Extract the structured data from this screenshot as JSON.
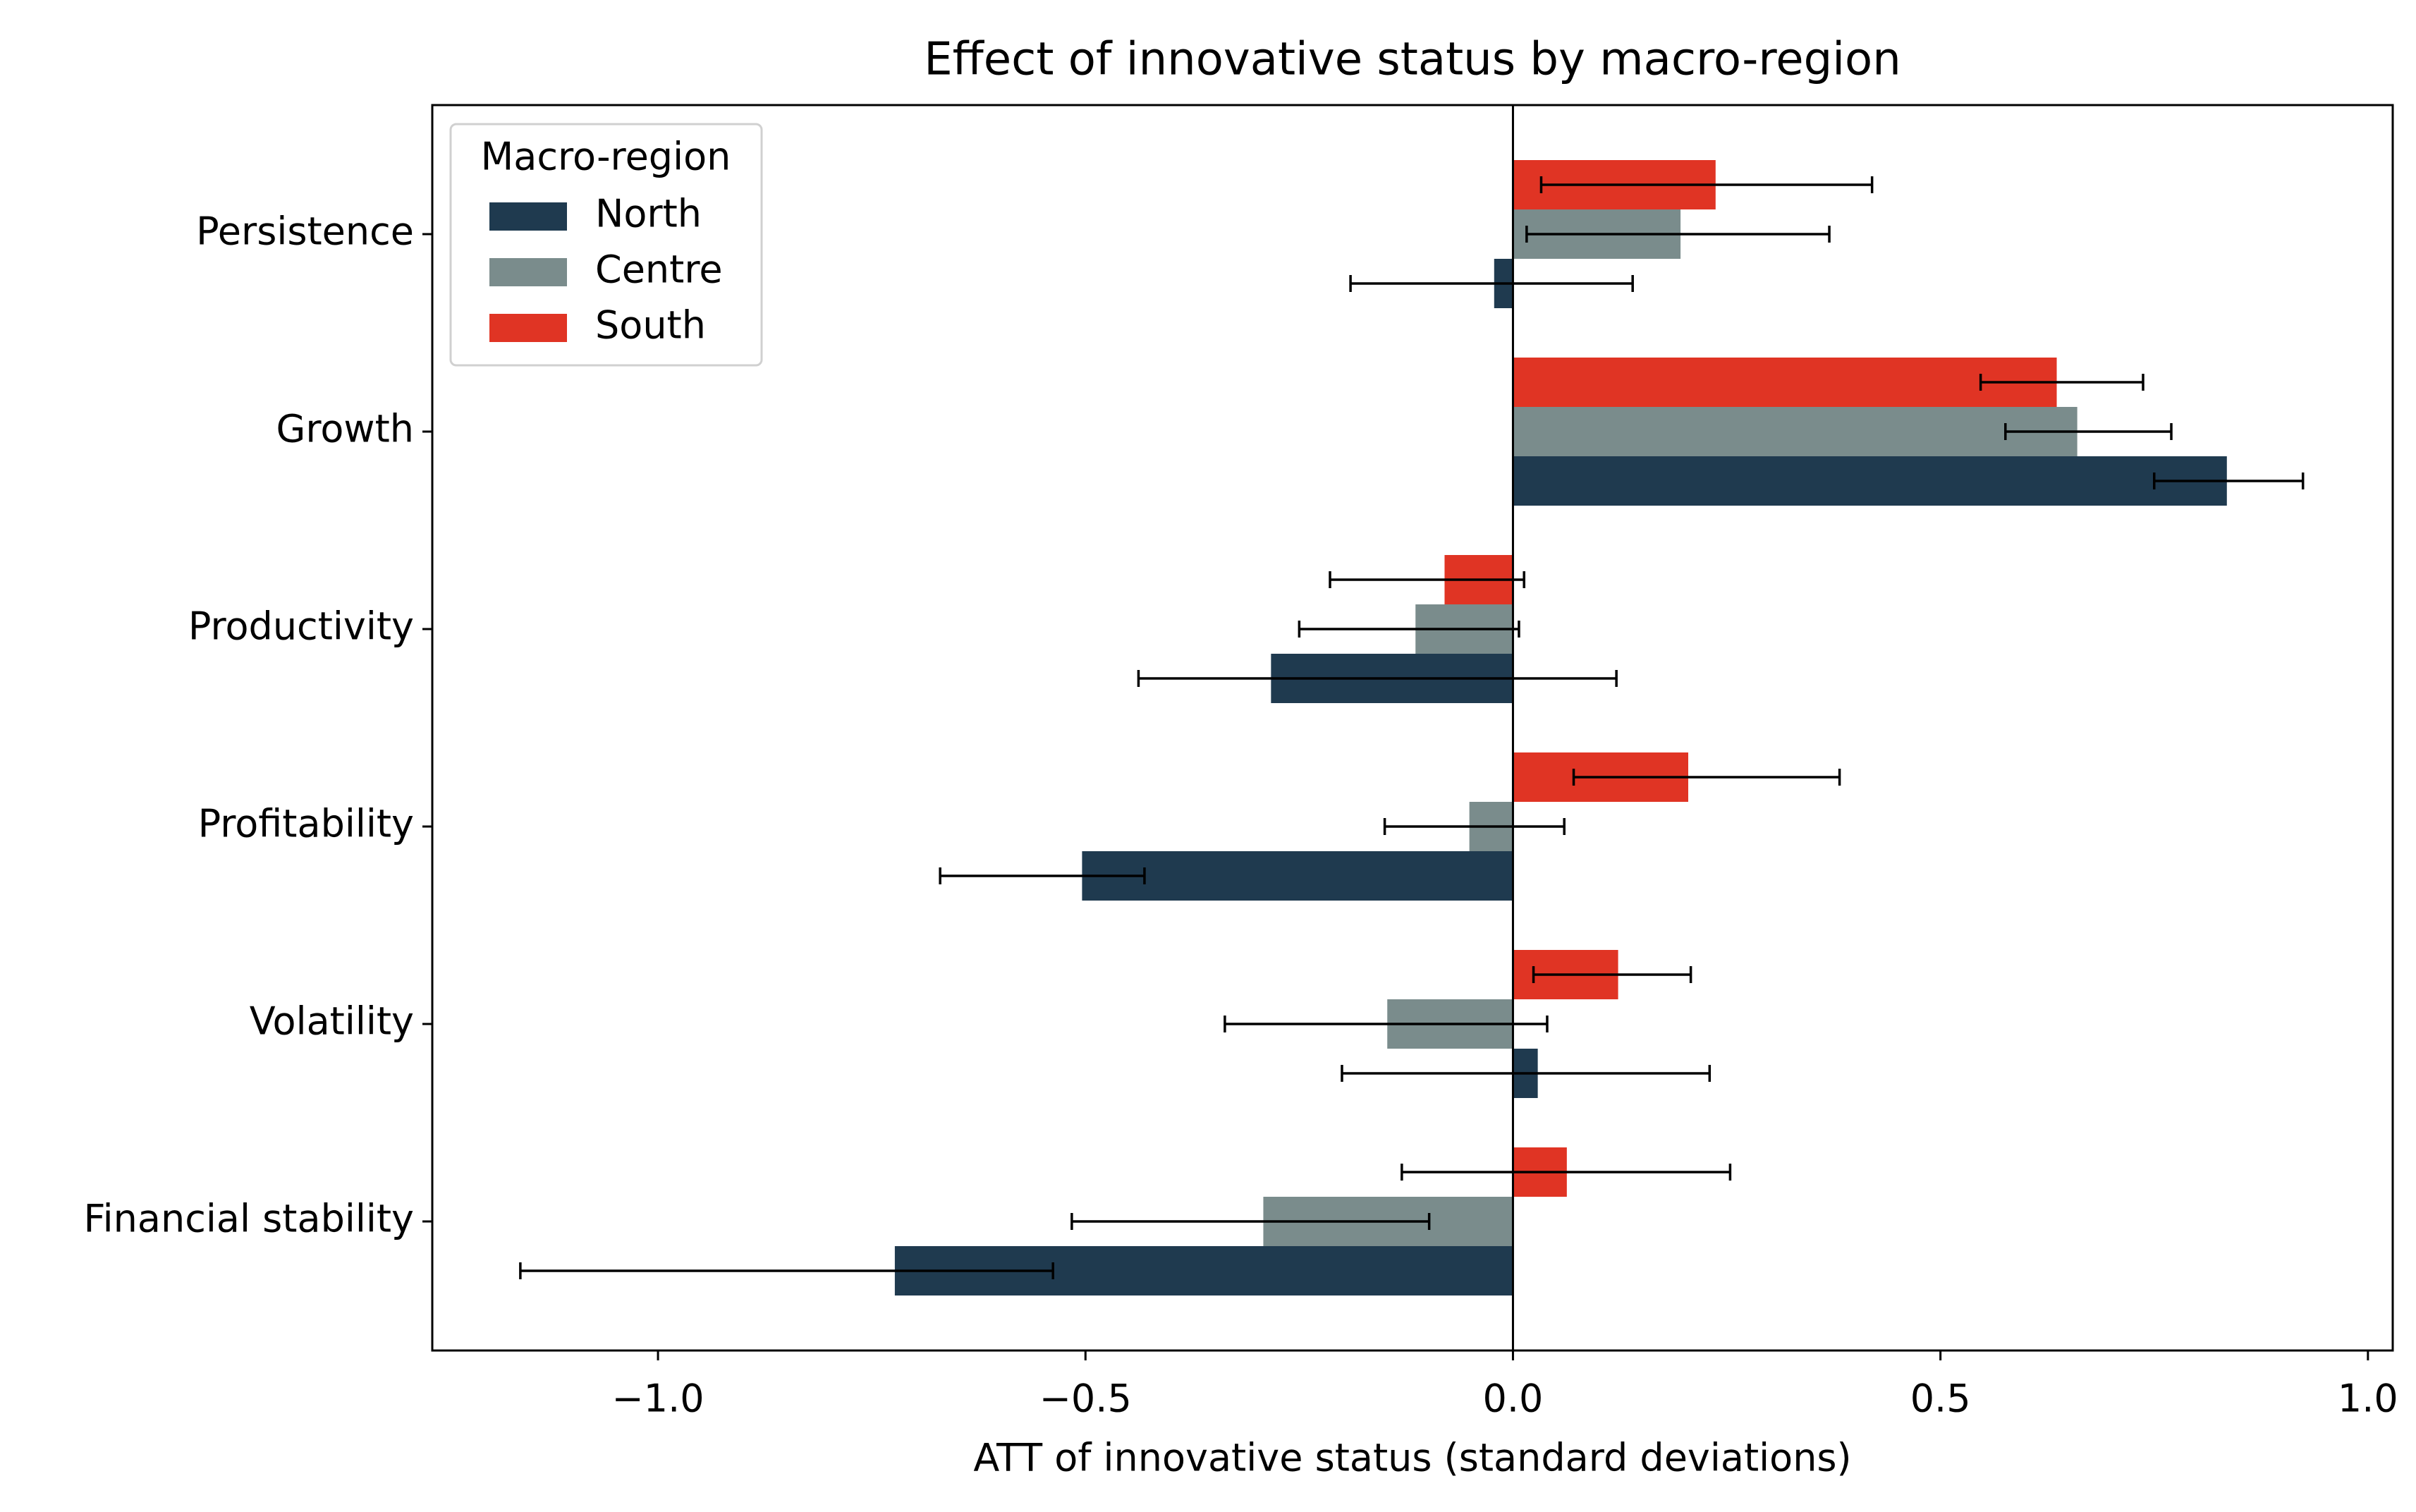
{
  "chart_data": {
    "type": "barh",
    "title": "Effect of innovative status by macro-region",
    "xlabel": "ATT of innovative status (standard deviations)",
    "legend_title": "Macro-region",
    "legend_position": "upper left",
    "categories": [
      "Persistence",
      "Growth",
      "Productivity",
      "Profitability",
      "Volatility",
      "Financial stability"
    ],
    "series": [
      {
        "name": "North",
        "color": "#1f3a4f",
        "values": [
          -0.022,
          0.835,
          -0.283,
          -0.504,
          0.029,
          -0.723
        ],
        "ci_low": [
          -0.19,
          0.75,
          -0.438,
          -0.67,
          -0.2,
          -1.161
        ],
        "ci_high": [
          0.14,
          0.924,
          0.121,
          -0.431,
          0.23,
          -0.538
        ]
      },
      {
        "name": "Centre",
        "color": "#7a8c8c",
        "values": [
          0.196,
          0.66,
          -0.114,
          -0.051,
          -0.147,
          -0.292
        ],
        "ci_low": [
          0.016,
          0.576,
          -0.25,
          -0.15,
          -0.337,
          -0.516
        ],
        "ci_high": [
          0.37,
          0.77,
          0.007,
          0.06,
          0.04,
          -0.098
        ]
      },
      {
        "name": "South",
        "color": "#e03424",
        "values": [
          0.237,
          0.636,
          -0.08,
          0.205,
          0.123,
          0.063
        ],
        "ci_low": [
          0.033,
          0.547,
          -0.214,
          0.071,
          0.024,
          -0.13
        ],
        "ci_high": [
          0.42,
          0.737,
          0.013,
          0.382,
          0.208,
          0.254
        ]
      }
    ],
    "xlim": [
      -1.264,
      1.029
    ],
    "xticks": [
      {
        "value": -1,
        "label": "−1.0"
      },
      {
        "value": -0.5,
        "label": "−0.5"
      },
      {
        "value": 0,
        "label": "0.0"
      },
      {
        "value": 0.5,
        "label": "0.5"
      },
      {
        "value": 1,
        "label": "1.0"
      }
    ],
    "zero_line": true
  }
}
